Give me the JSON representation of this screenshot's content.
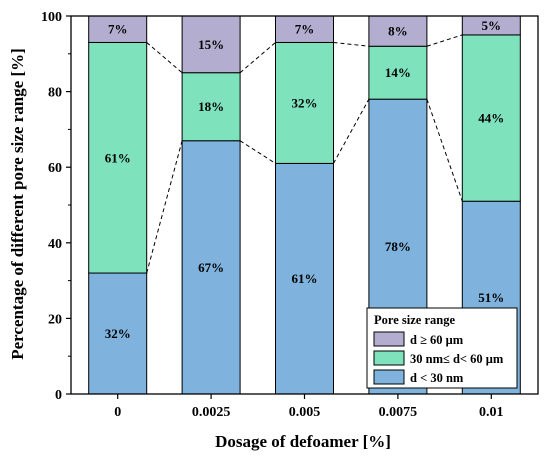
{
  "chart_data": {
    "type": "bar",
    "stacked": true,
    "categories": [
      "0",
      "0.0025",
      "0.005",
      "0.0075",
      "0.01"
    ],
    "series": [
      {
        "name": "d < 30 nm",
        "color": "#7fb3dd",
        "values": [
          32,
          67,
          61,
          78,
          51
        ],
        "labels": [
          "32%",
          "67%",
          "61%",
          "78%",
          "51%"
        ]
      },
      {
        "name": "30 nm≤ d< 60 μm",
        "color": "#7ee3bd",
        "values": [
          61,
          18,
          32,
          14,
          44
        ],
        "labels": [
          "61%",
          "18%",
          "32%",
          "14%",
          "44%"
        ]
      },
      {
        "name": "d ≥ 60 μm",
        "color": "#b3aecf",
        "values": [
          7,
          15,
          7,
          8,
          5
        ],
        "labels": [
          "7%",
          "15%",
          "7%",
          "8%",
          "5%"
        ]
      }
    ],
    "xlabel": "Dosage of defoamer [%]",
    "ylabel": "Percentage of different pore size range [%]",
    "ylim": [
      0,
      100
    ],
    "yticks": [
      "0",
      "20",
      "40",
      "60",
      "80",
      "100"
    ],
    "grid": false,
    "legend": {
      "title": "Pore size range",
      "placement": "bottom-right"
    },
    "connector_lines": "dashed"
  }
}
